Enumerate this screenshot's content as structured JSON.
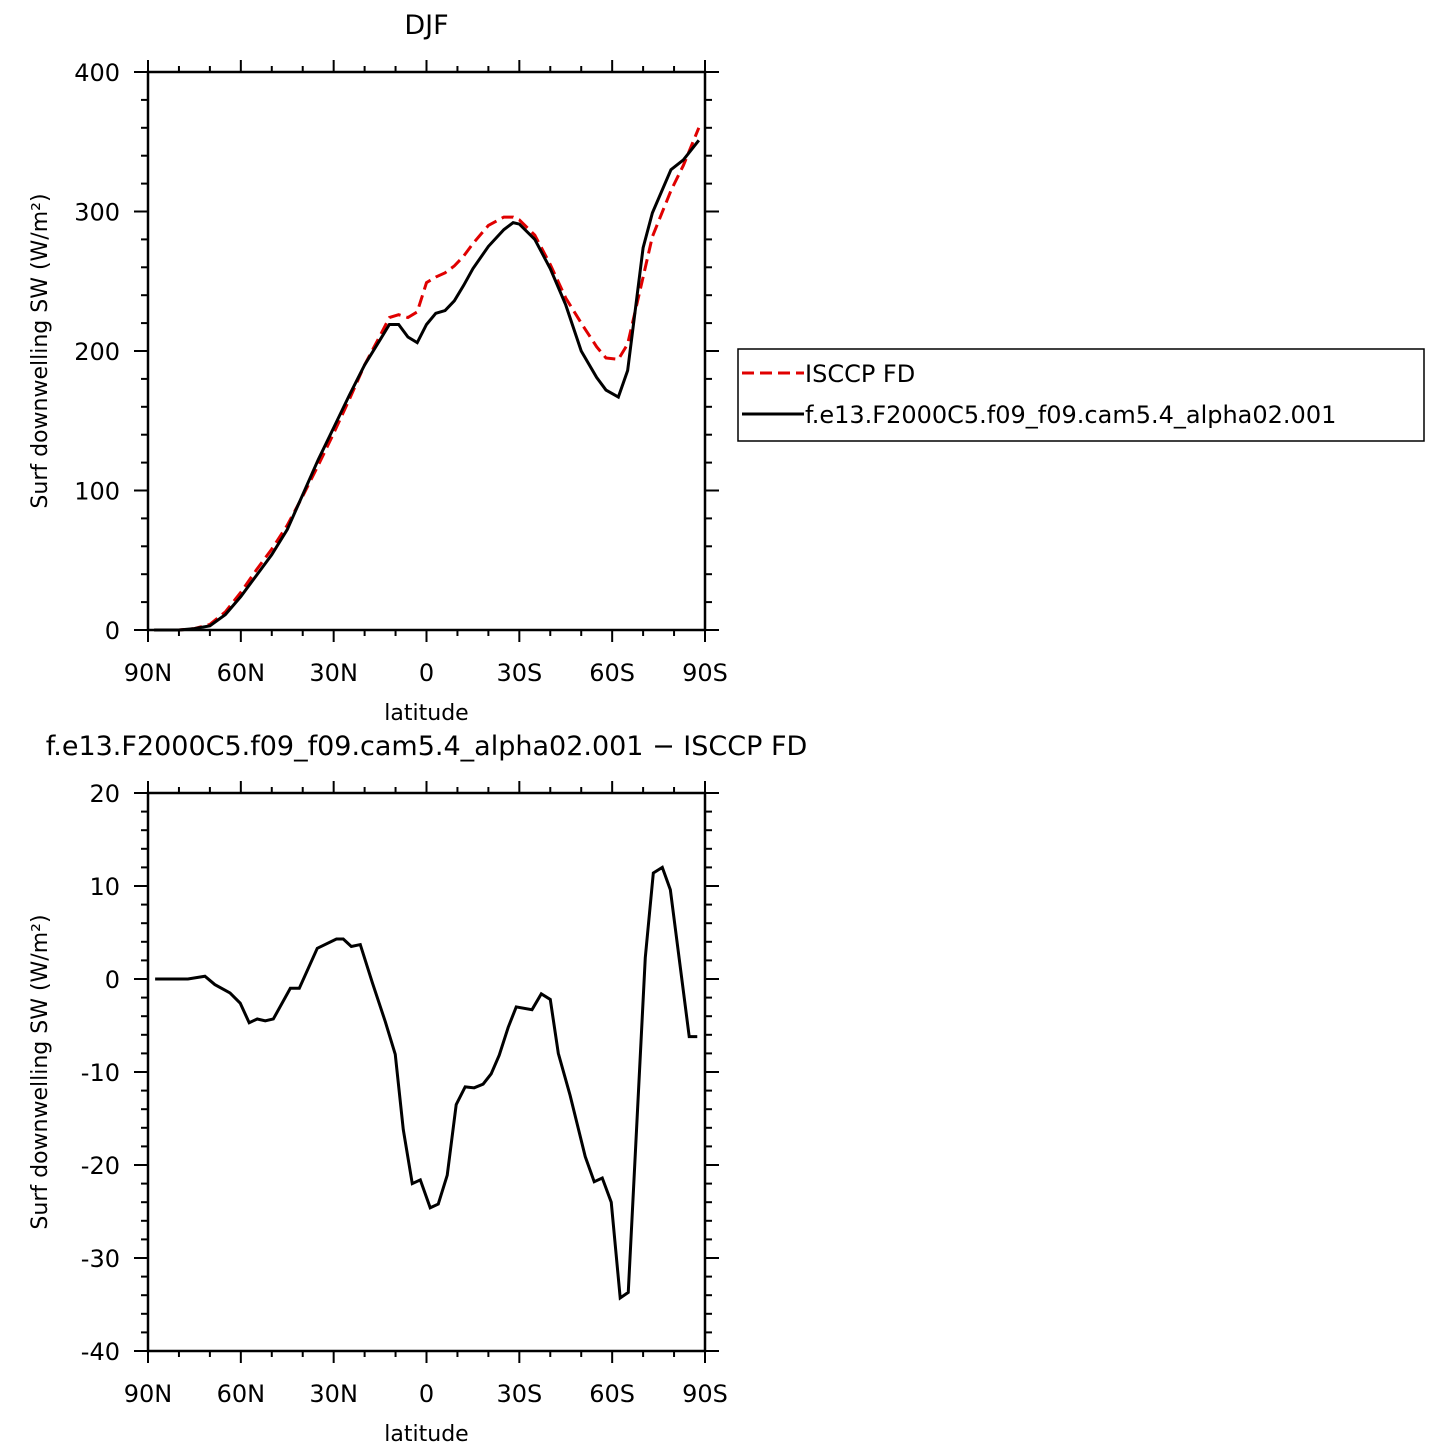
{
  "chart_data": [
    {
      "type": "line",
      "title": "DJF",
      "xlabel": "latitude",
      "ylabel": "Surf downwelling SW (W/m²)",
      "x": [
        88,
        80,
        75,
        70,
        65,
        60,
        55,
        50,
        45,
        40,
        35,
        30,
        25,
        20,
        15,
        12,
        9,
        6,
        3,
        0,
        -3,
        -6,
        -9,
        -12,
        -15,
        -20,
        -25,
        -28,
        -30,
        -35,
        -40,
        -45,
        -50,
        -55,
        -58,
        -62,
        -65,
        -70,
        -73,
        -79,
        -83,
        -88
      ],
      "series": [
        {
          "name": "ISCCP FD",
          "color": "#e00000",
          "dash": true,
          "values": [
            0,
            0,
            1,
            4,
            13,
            27,
            43,
            58,
            75,
            96,
            118,
            141,
            165,
            190,
            211,
            224,
            226,
            224,
            228,
            249,
            253,
            256,
            261,
            268,
            277,
            290,
            296,
            296,
            294,
            283,
            262,
            238,
            220,
            203,
            195,
            194,
            205,
            253,
            282,
            315,
            333,
            360
          ]
        },
        {
          "name": "f.e13.F2000C5.f09_f09.cam5.4_alpha02.001",
          "color": "#000000",
          "dash": false,
          "values": [
            0,
            0,
            1,
            3,
            11,
            24,
            39,
            54,
            72,
            97,
            122,
            145,
            168,
            190,
            208,
            219,
            219,
            210,
            206,
            219,
            227,
            229,
            236,
            247,
            259,
            275,
            287,
            292,
            291,
            280,
            259,
            233,
            200,
            181,
            172,
            167,
            186,
            274,
            299,
            330,
            337,
            351
          ]
        }
      ],
      "xlim": [
        90,
        -90
      ],
      "xticks": [
        {
          "value": 90,
          "label": "90N"
        },
        {
          "value": 60,
          "label": "60N"
        },
        {
          "value": 30,
          "label": "30N"
        },
        0,
        {
          "value": -30,
          "label": "30S"
        },
        {
          "value": -60,
          "label": "60S"
        },
        {
          "value": -90,
          "label": "90S"
        }
      ],
      "xminorticks": [
        80,
        70,
        50,
        40,
        20,
        10,
        -10,
        -20,
        -40,
        -50,
        -70,
        -80
      ],
      "ylim": [
        0,
        400
      ],
      "yticks": [
        0,
        100,
        200,
        300,
        400
      ],
      "yminorticks": [
        20,
        40,
        60,
        80,
        120,
        140,
        160,
        180,
        220,
        240,
        260,
        280,
        320,
        340,
        360,
        380
      ],
      "legend": "outside-right"
    },
    {
      "type": "line",
      "title": "f.e13.F2000C5.f09_f09.cam5.4_alpha02.001 − ISCCP FD",
      "xlabel": "latitude",
      "ylabel": "Surf downwelling SW (W/m²)",
      "x": [
        87.7,
        77.1,
        71.6,
        68.4,
        63.5,
        60.2,
        57.3,
        54.7,
        52.1,
        49.5,
        44,
        41.1,
        35.3,
        29.1,
        26.9,
        24.3,
        21.4,
        17.5,
        13.3,
        10.1,
        7.5,
        4.6,
        2,
        -1.2,
        -3.8,
        -6.7,
        -9.6,
        -12.5,
        -15.4,
        -18.3,
        -20.9,
        -23.5,
        -26.4,
        -29,
        -34.1,
        -37.1,
        -40,
        -42.6,
        -46.4,
        -51.3,
        -54.2,
        -56.8,
        -59.7,
        -62.6,
        -65.2,
        -70.7,
        -73.3,
        -76.2,
        -78.8,
        -84.9,
        -87.5
      ],
      "series": [
        {
          "color": "#000000",
          "dash": false,
          "values": [
            0,
            0,
            0.3,
            -0.6,
            -1.5,
            -2.6,
            -4.7,
            -4.3,
            -4.5,
            -4.3,
            -1,
            -1,
            3.3,
            4.3,
            4.3,
            3.5,
            3.7,
            -0.4,
            -4.6,
            -8.1,
            -16.2,
            -22,
            -21.6,
            -24.6,
            -24.2,
            -21.1,
            -13.5,
            -11.6,
            -11.7,
            -11.3,
            -10.2,
            -8.2,
            -5.2,
            -3,
            -3.3,
            -1.6,
            -2.2,
            -8,
            -12.5,
            -19.1,
            -21.8,
            -21.4,
            -24,
            -34.3,
            -33.7,
            2.3,
            11.4,
            12,
            9.6,
            -6.2,
            -6.2
          ]
        }
      ],
      "xlim": [
        90,
        -90
      ],
      "xticks": [
        {
          "value": 90,
          "label": "90N"
        },
        {
          "value": 60,
          "label": "60N"
        },
        {
          "value": 30,
          "label": "30N"
        },
        0,
        {
          "value": -30,
          "label": "30S"
        },
        {
          "value": -60,
          "label": "60S"
        },
        {
          "value": -90,
          "label": "90S"
        }
      ],
      "xminorticks": [
        80,
        70,
        50,
        40,
        20,
        10,
        -10,
        -20,
        -40,
        -50,
        -70,
        -80
      ],
      "ylim": [
        -40,
        20
      ],
      "yticks": [
        -40,
        -30,
        -20,
        -10,
        0,
        10,
        20
      ],
      "yminorticks": [
        -38,
        -36,
        -34,
        -32,
        -28,
        -26,
        -24,
        -22,
        -18,
        -16,
        -14,
        -12,
        -8,
        -6,
        -4,
        -2,
        2,
        4,
        6,
        8,
        12,
        14,
        16,
        18
      ]
    }
  ]
}
